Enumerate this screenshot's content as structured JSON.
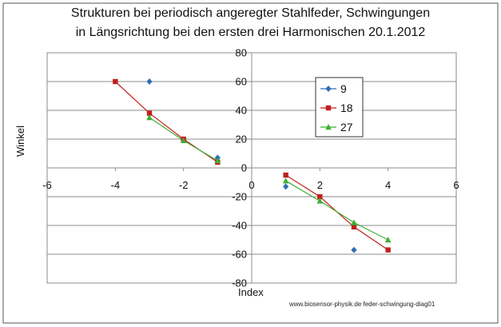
{
  "chart_data": {
    "type": "scatter",
    "title_line1": "Strukturen bei periodisch angeregter Stahlfeder, Schwingungen",
    "title_line2": "in Längsrichtung  bei den ersten drei Harmonischen 20.1.2012",
    "xlabel": "Index",
    "ylabel": "Winkel",
    "source_note": "www.biosensor-physik.de feder-schwingung-diag01",
    "xlim": [
      -6,
      6
    ],
    "ylim": [
      -80,
      80
    ],
    "x_ticks": [
      -6,
      -4,
      -2,
      0,
      2,
      4,
      6
    ],
    "y_ticks": [
      -80,
      -60,
      -40,
      -20,
      0,
      20,
      40,
      60,
      80
    ],
    "grid": "horizontal",
    "legend_position": "inside-upper-right",
    "series": [
      {
        "name": "9",
        "color": "#2e6eb5",
        "marker": "diamond",
        "connected": false,
        "points": [
          [
            -3,
            60
          ],
          [
            -1,
            7
          ],
          [
            1,
            -13
          ],
          [
            3,
            -57
          ]
        ]
      },
      {
        "name": "18",
        "color": "#c0201c",
        "marker": "square",
        "connected": true,
        "points": [
          [
            -4,
            60
          ],
          [
            -3,
            38
          ],
          [
            -2,
            20
          ],
          [
            -1,
            4
          ],
          [
            1,
            -5
          ],
          [
            2,
            -20
          ],
          [
            3,
            -41
          ],
          [
            4,
            -57
          ]
        ]
      },
      {
        "name": "27",
        "color": "#3fae33",
        "marker": "triangle",
        "connected": true,
        "points": [
          [
            -3,
            35
          ],
          [
            -2,
            19
          ],
          [
            -1,
            5
          ],
          [
            1,
            -9
          ],
          [
            2,
            -23
          ],
          [
            3,
            -38
          ],
          [
            4,
            -50
          ]
        ]
      }
    ]
  }
}
